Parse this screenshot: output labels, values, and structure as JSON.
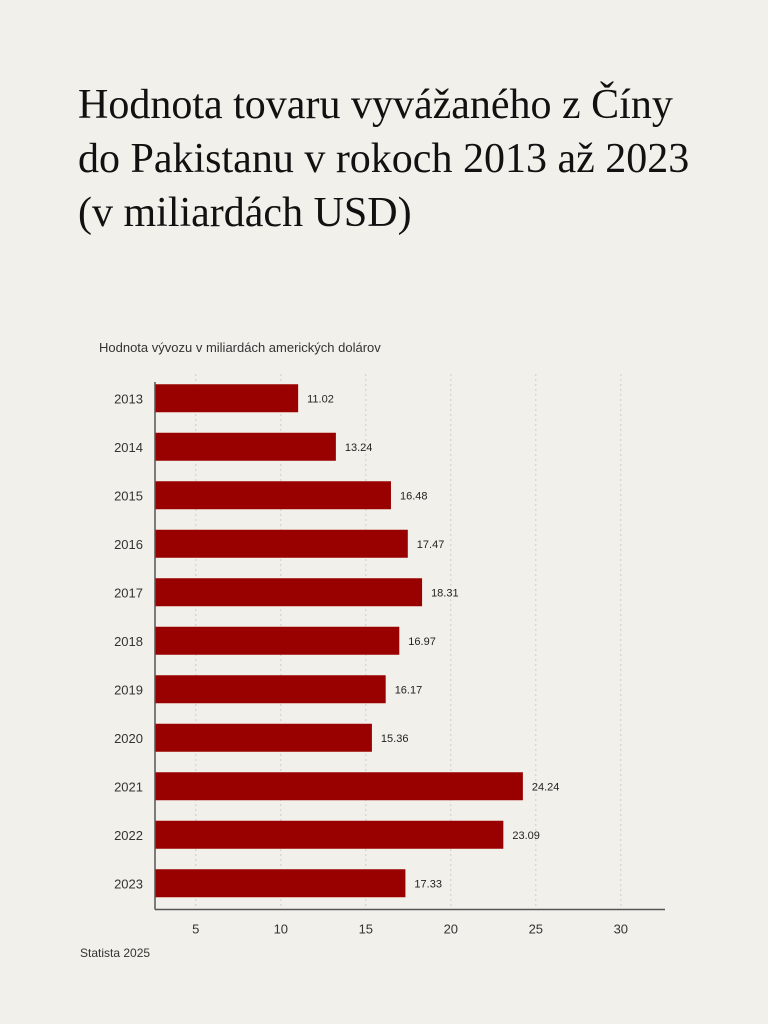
{
  "title": "Hodnota tovaru vyvážaného z Číny do Pakistanu v rokoch 2013 až 2023 (v miliardách USD)",
  "subtitle": "Hodnota vývozu v miliardách amerických dolárov",
  "source": "Statista 2025",
  "colors": {
    "bar": "#990000",
    "background": "#f2f0eb",
    "axis": "#555555",
    "grid": "#cfcccc"
  },
  "chart_data": {
    "type": "bar",
    "orientation": "horizontal",
    "title": "Hodnota tovaru vyvážaného z Číny do Pakistanu v rokoch 2013 až 2023 (v miliardách USD)",
    "subtitle": "Hodnota vývozu v miliardách amerických dolárov",
    "categories": [
      "2013",
      "2014",
      "2015",
      "2016",
      "2017",
      "2018",
      "2019",
      "2020",
      "2021",
      "2022",
      "2023"
    ],
    "values": [
      11.02,
      13.24,
      16.48,
      17.47,
      18.31,
      16.97,
      16.17,
      15.36,
      24.24,
      23.09,
      17.33
    ],
    "value_labels": [
      "11.02",
      "13.24",
      "16.48",
      "17.47",
      "18.31",
      "16.97",
      "16.17",
      "15.36",
      "24.24",
      "23.09",
      "17.33"
    ],
    "xticks": [
      5,
      10,
      15,
      20,
      25,
      30
    ],
    "xlim": [
      2.6,
      32.6
    ],
    "grid": "vertical dashed",
    "legend": "none"
  }
}
